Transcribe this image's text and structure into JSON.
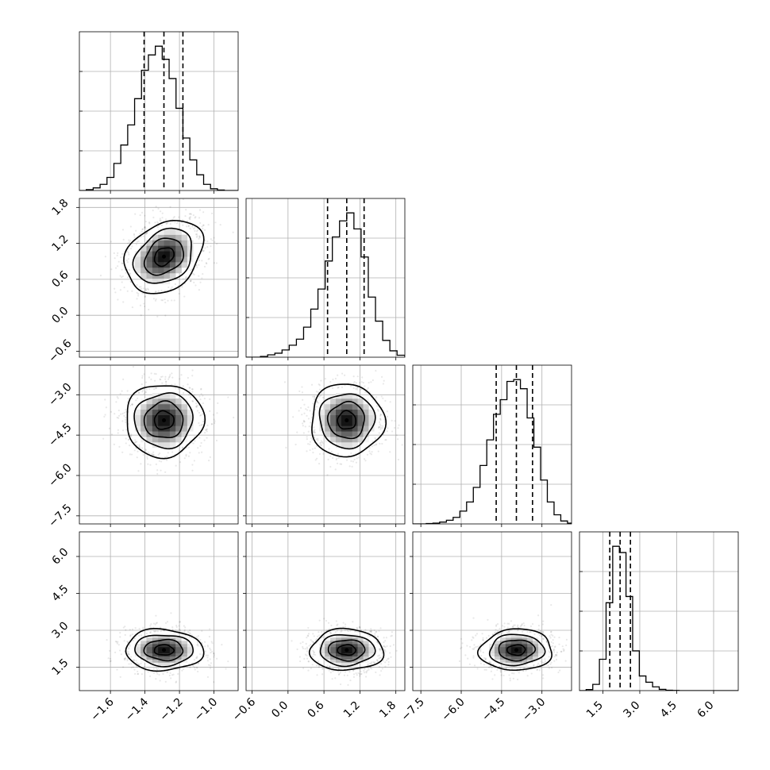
{
  "chart_data": {
    "type": "corner",
    "title": "",
    "legend": "none",
    "grid": true,
    "parameters": [
      {
        "name": "",
        "range": [
          -1.78,
          -0.86
        ],
        "ticks": [
          -1.6,
          -1.4,
          -1.2,
          -1.0
        ],
        "tick_labels": [
          "−1.6",
          "−1.4",
          "−1.2",
          "−1.0"
        ],
        "quantiles": [
          -1.405,
          -1.29,
          -1.18
        ],
        "median": -1.29,
        "hist_bins": [
          -1.78,
          -1.74,
          -1.7,
          -1.66,
          -1.62,
          -1.58,
          -1.54,
          -1.5,
          -1.46,
          -1.42,
          -1.38,
          -1.34,
          -1.3,
          -1.26,
          -1.22,
          -1.18,
          -1.14,
          -1.1,
          -1.06,
          -1.02,
          -0.98,
          -0.94,
          -0.9,
          -0.86
        ],
        "hist_counts": [
          0,
          2,
          6,
          14,
          30,
          62,
          104,
          150,
          210,
          275,
          310,
          330,
          300,
          256,
          188,
          120,
          70,
          36,
          14,
          4,
          1,
          0,
          0
        ]
      },
      {
        "name": "",
        "range": [
          -0.7,
          1.95
        ],
        "ticks": [
          -0.6,
          0.0,
          0.6,
          1.2,
          1.8
        ],
        "tick_labels": [
          "−0.6",
          "0.0",
          "0.6",
          "1.2",
          "1.8"
        ],
        "quantiles": [
          0.66,
          0.98,
          1.27
        ],
        "median": 0.98,
        "hist_bins": [
          -0.7,
          -0.58,
          -0.46,
          -0.34,
          -0.22,
          -0.1,
          0.02,
          0.14,
          0.26,
          0.38,
          0.5,
          0.62,
          0.74,
          0.86,
          0.98,
          1.1,
          1.22,
          1.34,
          1.46,
          1.58,
          1.7,
          1.82,
          1.95
        ],
        "hist_counts": [
          0,
          0,
          2,
          6,
          10,
          18,
          30,
          45,
          75,
          120,
          170,
          240,
          300,
          340,
          360,
          320,
          250,
          150,
          90,
          42,
          16,
          5
        ]
      },
      {
        "name": "",
        "range": [
          -7.8,
          -1.9
        ],
        "ticks": [
          -7.5,
          -6.0,
          -4.5,
          -3.0
        ],
        "tick_labels": [
          "−7.5",
          "−6.0",
          "−4.5",
          "−3.0"
        ],
        "quantiles": [
          -4.7,
          -3.95,
          -3.35
        ],
        "median": -3.95,
        "hist_bins": [
          -7.8,
          -7.55,
          -7.3,
          -7.05,
          -6.8,
          -6.55,
          -6.3,
          -6.05,
          -5.8,
          -5.55,
          -5.3,
          -5.05,
          -4.8,
          -4.55,
          -4.3,
          -4.05,
          -3.8,
          -3.55,
          -3.3,
          -3.05,
          -2.8,
          -2.55,
          -2.3,
          -2.05,
          -1.9
        ],
        "hist_counts": [
          0,
          0,
          1,
          2,
          5,
          10,
          18,
          35,
          60,
          100,
          160,
          230,
          300,
          340,
          390,
          395,
          370,
          290,
          210,
          120,
          60,
          25,
          8,
          2
        ]
      },
      {
        "name": "",
        "range": [
          0.55,
          7.0
        ],
        "ticks": [
          1.5,
          3.0,
          4.5,
          6.0
        ],
        "tick_labels": [
          "1.5",
          "3.0",
          "4.5",
          "6.0"
        ],
        "quantiles": [
          1.78,
          2.2,
          2.62
        ],
        "median": 2.2,
        "hist_bins": [
          0.55,
          0.82,
          1.09,
          1.36,
          1.63,
          1.9,
          2.17,
          2.44,
          2.71,
          2.98,
          3.25,
          3.52,
          3.79,
          4.06,
          4.33,
          4.6,
          4.87,
          5.14,
          5.41,
          5.68,
          5.95,
          6.22,
          6.49,
          6.76,
          7.0
        ],
        "hist_counts": [
          0,
          5,
          30,
          150,
          420,
          690,
          660,
          450,
          190,
          70,
          40,
          18,
          6,
          2,
          1,
          0,
          0,
          0,
          0,
          0,
          0,
          0,
          0,
          0
        ]
      }
    ],
    "correlations": {
      "1-0": 0.28,
      "2-0": 0.02,
      "2-1": 0.0,
      "3-0": -0.03,
      "3-1": 0.0,
      "3-2": 0.04
    },
    "contour_levels_sigma": [
      0.5,
      1.0,
      1.5,
      2.0
    ]
  }
}
